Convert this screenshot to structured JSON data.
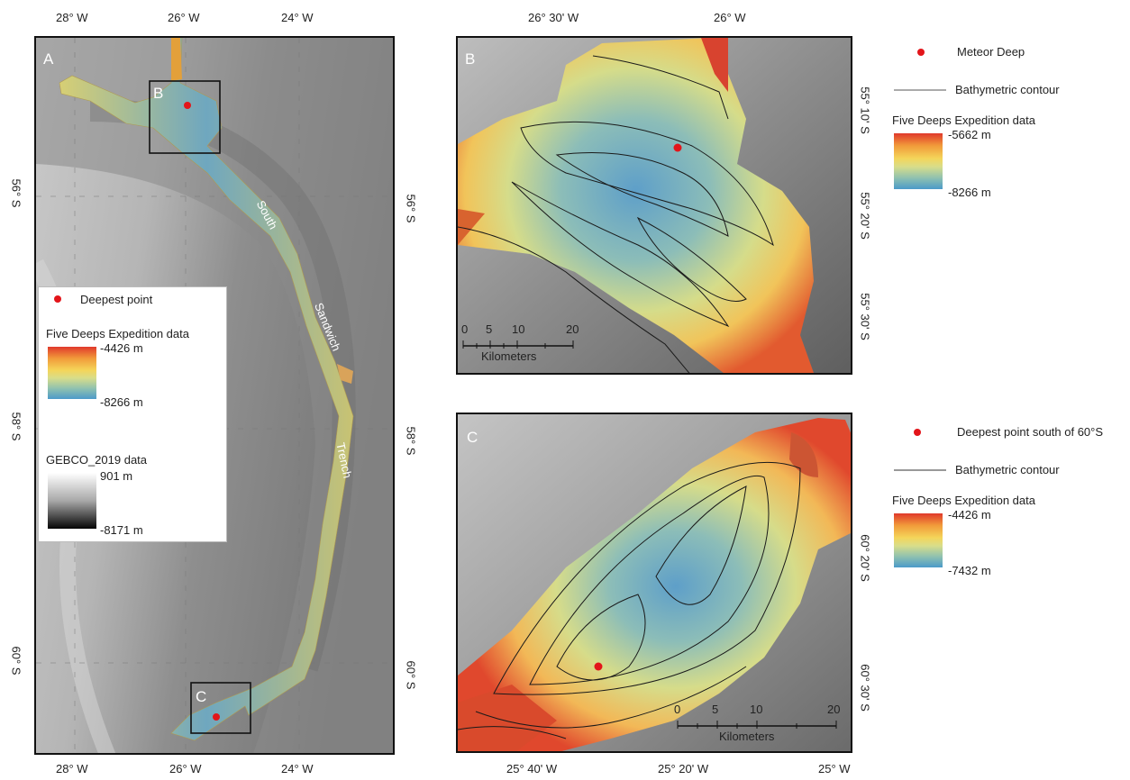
{
  "panel_a": {
    "label": "A",
    "top_ticks": [
      "28° W",
      "26° W",
      "24° W"
    ],
    "bottom_ticks": [
      "28° W",
      "26° W",
      "24° W"
    ],
    "left_ticks": [
      "56° S",
      "58° S",
      "60° S"
    ],
    "right_ticks": [
      "56° S",
      "58° S",
      "60° S"
    ],
    "inset_b_label": "B",
    "inset_c_label": "C",
    "trench_words": [
      "South",
      "Sandwich",
      "Trench"
    ],
    "legend": {
      "point_label": "Deepest point",
      "fde_title": "Five Deeps Expedition data",
      "fde_max": "-4426 m",
      "fde_min": "-8266 m",
      "gebco_title": "GEBCO_2019 data",
      "gebco_max": "901 m",
      "gebco_min": "-8171 m"
    }
  },
  "panel_b": {
    "label": "B",
    "top_ticks": [
      "26° 30' W",
      "26° W"
    ],
    "right_ticks": [
      "55° 10' S",
      "55° 20' S",
      "55° 30' S"
    ],
    "scale_numbers": [
      "0",
      "5",
      "10",
      "20"
    ],
    "scale_unit": "Kilometers",
    "legend": {
      "point_label": "Meteor Deep",
      "contour_label": "Bathymetric contour",
      "fde_title": "Five Deeps Expedition data",
      "fde_max": "-5662 m",
      "fde_min": "-8266 m"
    }
  },
  "panel_c": {
    "label": "C",
    "bottom_ticks": [
      "25° 40' W",
      "25° 20' W",
      "25° W"
    ],
    "right_ticks": [
      "60° 20' S",
      "60° 30' S"
    ],
    "scale_numbers": [
      "0",
      "5",
      "10",
      "20"
    ],
    "scale_unit": "Kilometers",
    "legend": {
      "point_label": "Deepest point south of 60°S",
      "contour_label": "Bathymetric contour",
      "fde_title": "Five Deeps Expedition data",
      "fde_max": "-4426 m",
      "fde_min": "-7432 m"
    }
  },
  "colors": {
    "deep_point": "#e3151a",
    "contour": "#1a1a1a",
    "frame": "#111111"
  }
}
